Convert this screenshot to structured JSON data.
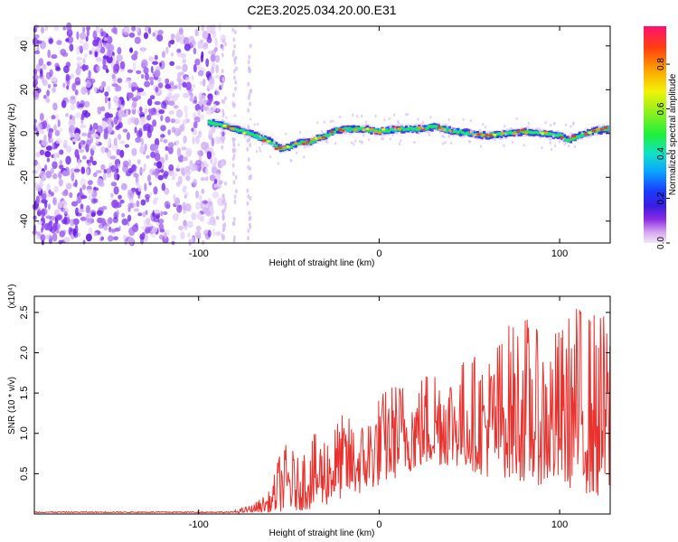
{
  "figure": {
    "title": "C2E3.2025.034.20.00.E31"
  },
  "chart_data": [
    {
      "type": "heatmap",
      "xlabel": "Height of straight line (km)",
      "ylabel": "Frequency (Hz)",
      "xlim": [
        -191,
        128
      ],
      "ylim": [
        -50,
        49
      ],
      "xticks": [
        -100,
        0,
        100
      ],
      "yticks": [
        -40,
        -20,
        0,
        20,
        40
      ],
      "grid": false,
      "colorbar": {
        "label": "Normalized spectral amplitude",
        "range": [
          0.0,
          0.97
        ],
        "ticks": [
          0.0,
          0.2,
          0.4,
          0.6,
          0.8
        ],
        "colormap": "rainbow (violet to red)"
      },
      "ridge": {
        "description_points_x": [
          -95,
          -88,
          -80,
          -72,
          -66,
          -60,
          -56,
          -50,
          -44,
          -40,
          -34,
          -30,
          -26,
          -20,
          -10,
          0,
          10,
          20,
          30,
          40,
          50,
          60,
          70,
          80,
          90,
          100,
          104,
          110,
          118,
          126
        ],
        "description_points_y": [
          5,
          4,
          2,
          0,
          -2,
          -4,
          -7,
          -6,
          -4,
          -4,
          -2,
          -1,
          1,
          2,
          2,
          1,
          2,
          2,
          3,
          1,
          0,
          -1,
          0,
          1,
          0,
          -1,
          -3,
          -1,
          1,
          2
        ]
      },
      "noise_region": {
        "x_from": -191,
        "x_to": -86
      }
    },
    {
      "type": "line",
      "xlabel": "Height of straight line (km)",
      "ylabel": "SNR (10 * v/v)",
      "y_multiplier": "(x10⁴)",
      "xlim": [
        -191,
        128
      ],
      "ylim": [
        0,
        2.7
      ],
      "xticks": [
        -100,
        0,
        100
      ],
      "yticks": [
        0.5,
        1.0,
        1.5,
        2.0,
        2.5
      ],
      "ytick_labels": [
        "0.5",
        "1.0",
        "1.5",
        "2.0",
        "2.5"
      ],
      "grid": false,
      "series": [
        {
          "color": "#e8322e",
          "envelope_x": [
            -191,
            -120,
            -80,
            -70,
            -60,
            -55,
            -50,
            -45,
            -40,
            -30,
            -20,
            -10,
            0,
            10,
            20,
            30,
            40,
            50,
            60,
            70,
            80,
            90,
            100,
            110,
            120,
            128
          ],
          "envelope_low": [
            0,
            0,
            0.01,
            0.02,
            0.02,
            0.03,
            0.03,
            0.04,
            0.05,
            0.1,
            0.2,
            0.25,
            0.35,
            0.45,
            0.55,
            0.6,
            0.6,
            0.55,
            0.45,
            0.45,
            0.4,
            0.35,
            0.35,
            0.3,
            0.2,
            0.2
          ],
          "envelope_high": [
            0.03,
            0.03,
            0.05,
            0.12,
            0.3,
            0.8,
            0.9,
            0.7,
            0.95,
            1.05,
            1.25,
            1.15,
            1.5,
            1.7,
            1.65,
            1.95,
            1.85,
            2.0,
            2.0,
            2.35,
            2.55,
            2.2,
            2.35,
            2.65,
            2.55,
            2.5
          ]
        }
      ]
    }
  ]
}
